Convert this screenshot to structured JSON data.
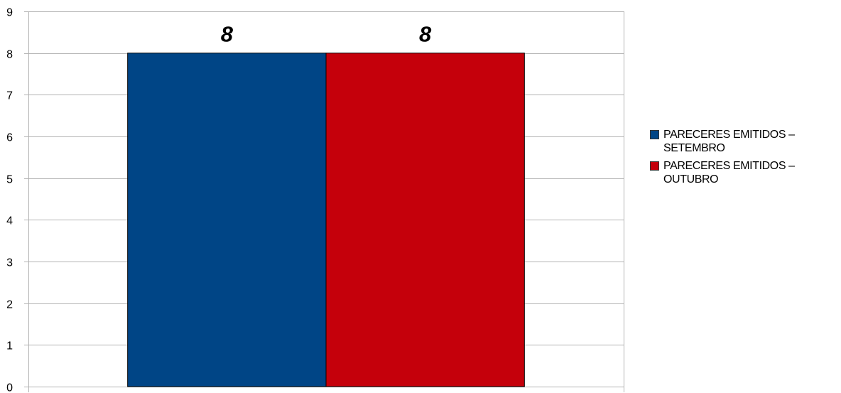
{
  "chart_data": {
    "type": "bar",
    "categories": [
      ""
    ],
    "series": [
      {
        "name": "PARECERES EMITIDOS – SETEMBRO",
        "values": [
          8
        ],
        "color": "#004586"
      },
      {
        "name": "PARECERES EMITIDOS – OUTUBRO",
        "values": [
          8
        ],
        "color": "#c5000b"
      }
    ],
    "ylim": [
      0,
      9
    ],
    "yticks": [
      0,
      1,
      2,
      3,
      4,
      5,
      6,
      7,
      8,
      9
    ],
    "grid": true,
    "legend_position": "right",
    "data_labels": [
      "8",
      "8"
    ],
    "title": "",
    "xlabel": "",
    "ylabel": ""
  },
  "colors": {
    "grid": "#b3b3b3",
    "axis": "#b3b3b3",
    "bar_outline": "#000000"
  }
}
